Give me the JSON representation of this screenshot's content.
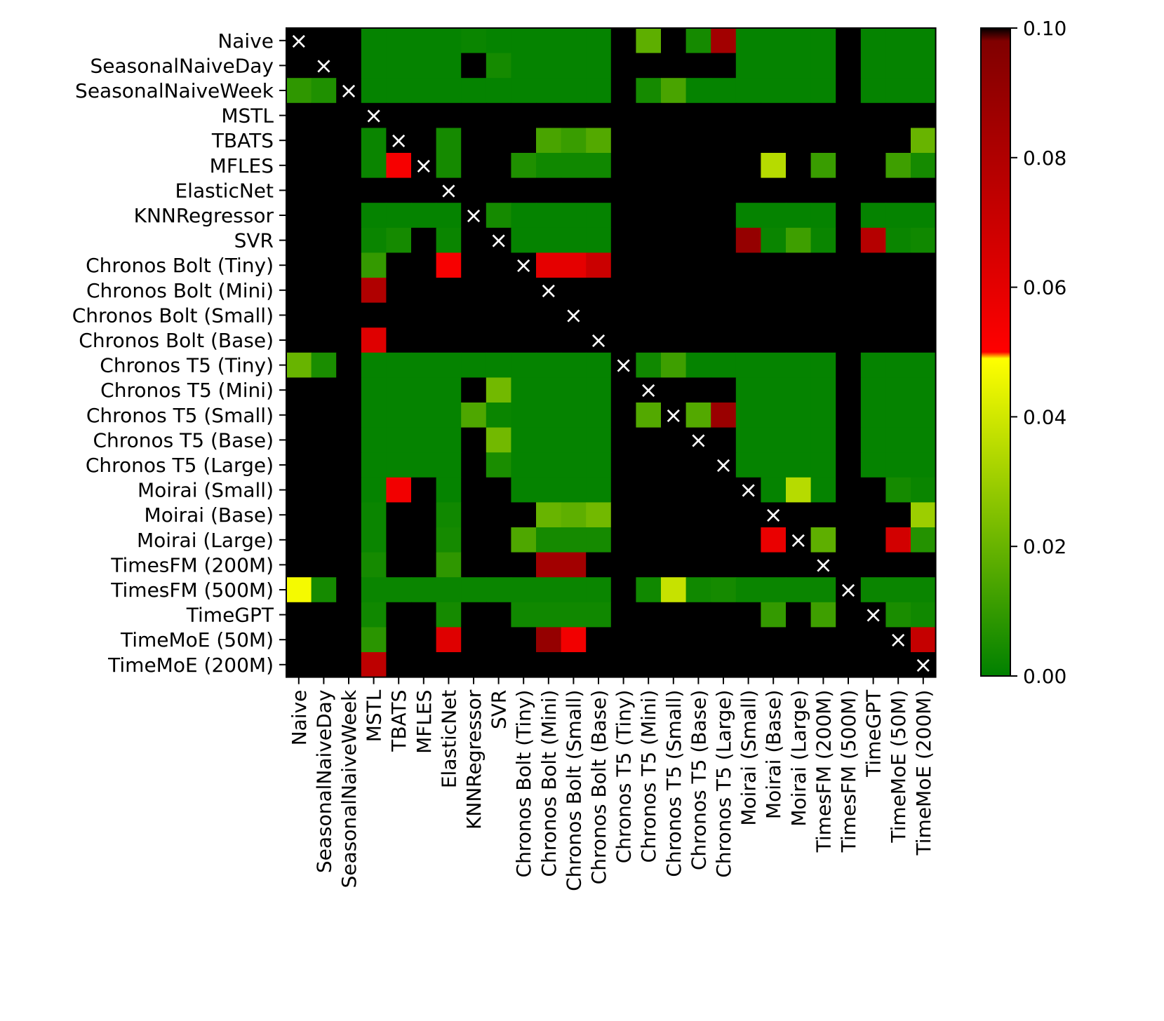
{
  "chart_data": {
    "type": "heatmap",
    "title": "",
    "xlabel": "",
    "ylabel": "",
    "labels": [
      "Naive",
      "SeasonalNaiveDay",
      "SeasonalNaiveWeek",
      "MSTL",
      "TBATS",
      "MFLES",
      "ElasticNet",
      "KNNRegressor",
      "SVR",
      "Chronos Bolt (Tiny)",
      "Chronos Bolt (Mini)",
      "Chronos Bolt (Small)",
      "Chronos Bolt (Base)",
      "Chronos T5 (Tiny)",
      "Chronos T5 (Mini)",
      "Chronos T5 (Small)",
      "Chronos T5 (Base)",
      "Chronos T5 (Large)",
      "Moirai (Small)",
      "Moirai (Base)",
      "Moirai (Large)",
      "TimesFM (200M)",
      "TimesFM (500M)",
      "TimeGPT",
      "TimeMoE (50M)",
      "TimeMoE (200M)"
    ],
    "diagonal_marker": "×",
    "zlim": [
      0.0,
      0.1
    ],
    "colorbar": {
      "ticks": [
        0.0,
        0.02,
        0.04,
        0.06,
        0.08,
        0.1
      ],
      "tick_labels": [
        "0.00",
        "0.02",
        "0.04",
        "0.06",
        "0.08",
        "0.10"
      ],
      "stops": [
        {
          "value": 0.0,
          "color": "#008000"
        },
        {
          "value": 0.049,
          "color": "#ffff00"
        },
        {
          "value": 0.05,
          "color": "#ff0000"
        },
        {
          "value": 0.098,
          "color": "#800000"
        },
        {
          "value": 0.1,
          "color": "#000000"
        }
      ],
      "above_max_color": "#000000"
    },
    "note": "null = diagonal; 1 = p-value above 0.10 (black)",
    "values": [
      [
        null,
        1,
        1,
        0.001,
        0.001,
        0.001,
        0.001,
        0.002,
        0.001,
        0.001,
        0.001,
        0.001,
        0.001,
        1,
        0.018,
        1,
        0.004,
        0.085,
        0.001,
        0.001,
        0.001,
        0.001,
        1,
        0.001,
        0.001,
        0.001
      ],
      [
        1,
        null,
        1,
        0.001,
        0.001,
        0.001,
        0.001,
        1,
        0.004,
        0.001,
        0.001,
        0.001,
        0.001,
        1,
        1,
        1,
        1,
        1,
        0.001,
        0.001,
        0.001,
        0.001,
        1,
        0.001,
        0.001,
        0.001
      ],
      [
        0.009,
        0.006,
        null,
        0.001,
        0.001,
        0.001,
        0.001,
        0.001,
        0.001,
        0.001,
        0.001,
        0.001,
        0.001,
        1,
        0.004,
        0.014,
        0.001,
        0.001,
        0.001,
        0.001,
        0.001,
        0.001,
        1,
        0.001,
        0.001,
        0.001
      ],
      [
        1,
        1,
        1,
        null,
        1,
        1,
        1,
        1,
        1,
        1,
        1,
        1,
        1,
        1,
        1,
        1,
        1,
        1,
        1,
        1,
        1,
        1,
        1,
        1,
        1,
        1
      ],
      [
        1,
        1,
        1,
        0.002,
        null,
        1,
        0.004,
        1,
        1,
        1,
        0.014,
        0.011,
        0.016,
        1,
        1,
        1,
        1,
        1,
        1,
        1,
        1,
        1,
        1,
        1,
        1,
        0.02
      ],
      [
        1,
        1,
        1,
        0.002,
        0.053,
        null,
        0.004,
        1,
        1,
        0.006,
        0.003,
        0.003,
        0.003,
        1,
        1,
        1,
        1,
        1,
        1,
        0.035,
        1,
        0.011,
        1,
        1,
        0.012,
        0.004
      ],
      [
        1,
        1,
        1,
        1,
        1,
        1,
        null,
        1,
        1,
        1,
        1,
        1,
        1,
        1,
        1,
        1,
        1,
        1,
        1,
        1,
        1,
        1,
        1,
        1,
        1,
        1
      ],
      [
        1,
        1,
        1,
        0.001,
        0.001,
        0.001,
        0.001,
        null,
        0.004,
        0.001,
        0.001,
        0.001,
        0.001,
        1,
        1,
        1,
        1,
        1,
        0.001,
        0.001,
        0.001,
        0.001,
        1,
        0.001,
        0.001,
        0.001
      ],
      [
        1,
        1,
        1,
        0.002,
        0.004,
        1,
        0.002,
        1,
        null,
        0.001,
        0.001,
        0.001,
        0.001,
        1,
        1,
        1,
        1,
        1,
        0.09,
        0.002,
        0.012,
        0.002,
        1,
        0.078,
        0.002,
        0.003
      ],
      [
        1,
        1,
        1,
        0.01,
        1,
        1,
        0.053,
        1,
        1,
        null,
        0.06,
        0.06,
        0.07,
        1,
        1,
        1,
        1,
        1,
        1,
        1,
        1,
        1,
        1,
        1,
        1,
        1
      ],
      [
        1,
        1,
        1,
        0.08,
        1,
        1,
        1,
        1,
        1,
        1,
        null,
        1,
        1,
        1,
        1,
        1,
        1,
        1,
        1,
        1,
        1,
        1,
        1,
        1,
        1,
        1
      ],
      [
        1,
        1,
        1,
        1,
        1,
        1,
        1,
        1,
        1,
        1,
        1,
        null,
        1,
        1,
        1,
        1,
        1,
        1,
        1,
        1,
        1,
        1,
        1,
        1,
        1,
        1
      ],
      [
        1,
        1,
        1,
        0.062,
        1,
        1,
        1,
        1,
        1,
        1,
        1,
        1,
        null,
        1,
        1,
        1,
        1,
        1,
        1,
        1,
        1,
        1,
        1,
        1,
        1,
        1
      ],
      [
        0.02,
        0.005,
        1,
        0.001,
        0.001,
        0.001,
        0.001,
        0.001,
        0.001,
        0.001,
        0.001,
        0.001,
        0.001,
        null,
        0.003,
        0.012,
        0.001,
        0.001,
        0.001,
        0.001,
        0.001,
        0.001,
        1,
        0.001,
        0.001,
        0.001
      ],
      [
        1,
        1,
        1,
        0.001,
        0.001,
        0.001,
        0.001,
        1,
        0.022,
        0.001,
        0.001,
        0.001,
        0.001,
        1,
        null,
        1,
        1,
        1,
        0.001,
        0.001,
        0.001,
        0.001,
        1,
        0.001,
        0.001,
        0.001
      ],
      [
        1,
        1,
        1,
        0.001,
        0.001,
        0.001,
        0.001,
        0.015,
        0.002,
        0.001,
        0.001,
        0.001,
        0.001,
        1,
        0.016,
        null,
        0.016,
        0.088,
        0.001,
        0.001,
        0.001,
        0.001,
        1,
        0.001,
        0.001,
        0.001
      ],
      [
        1,
        1,
        1,
        0.001,
        0.001,
        0.001,
        0.001,
        1,
        0.022,
        0.001,
        0.001,
        0.001,
        0.001,
        1,
        1,
        1,
        null,
        1,
        0.001,
        0.001,
        0.001,
        0.001,
        1,
        0.001,
        0.001,
        0.001
      ],
      [
        1,
        1,
        1,
        0.001,
        0.001,
        0.001,
        0.001,
        1,
        0.005,
        0.001,
        0.001,
        0.001,
        0.001,
        1,
        1,
        1,
        1,
        null,
        0.001,
        0.001,
        0.001,
        0.001,
        1,
        0.001,
        0.001,
        0.001
      ],
      [
        1,
        1,
        1,
        0.001,
        0.055,
        1,
        0.001,
        1,
        1,
        0.001,
        0.001,
        0.001,
        0.001,
        1,
        1,
        1,
        1,
        1,
        null,
        0.001,
        0.035,
        0.001,
        1,
        1,
        0.004,
        0.002
      ],
      [
        1,
        1,
        1,
        0.002,
        1,
        1,
        0.003,
        1,
        1,
        1,
        0.02,
        0.018,
        0.022,
        1,
        1,
        1,
        1,
        1,
        1,
        null,
        1,
        1,
        1,
        1,
        1,
        0.03
      ],
      [
        1,
        1,
        1,
        0.002,
        1,
        1,
        0.004,
        1,
        1,
        0.015,
        0.004,
        0.004,
        0.004,
        1,
        1,
        1,
        1,
        1,
        1,
        0.058,
        null,
        0.018,
        1,
        1,
        0.067,
        0.007
      ],
      [
        1,
        1,
        1,
        0.004,
        1,
        1,
        0.009,
        1,
        1,
        1,
        0.085,
        0.085,
        1,
        1,
        1,
        1,
        1,
        1,
        1,
        1,
        1,
        null,
        1,
        1,
        1,
        1
      ],
      [
        0.047,
        0.004,
        1,
        0.002,
        0.002,
        0.002,
        0.002,
        0.002,
        0.002,
        0.002,
        0.002,
        0.002,
        0.002,
        1,
        0.003,
        0.038,
        0.003,
        0.004,
        0.002,
        0.002,
        0.002,
        0.002,
        null,
        0.002,
        0.002,
        0.002
      ],
      [
        1,
        1,
        1,
        0.003,
        1,
        1,
        0.004,
        1,
        1,
        0.003,
        0.003,
        0.003,
        0.003,
        1,
        1,
        1,
        1,
        1,
        1,
        0.01,
        1,
        0.012,
        1,
        null,
        0.005,
        0.003
      ],
      [
        1,
        1,
        1,
        0.008,
        1,
        1,
        0.062,
        1,
        1,
        1,
        0.09,
        0.055,
        1,
        1,
        1,
        1,
        1,
        1,
        1,
        1,
        1,
        1,
        1,
        1,
        null,
        0.072
      ],
      [
        1,
        1,
        1,
        0.075,
        1,
        1,
        1,
        1,
        1,
        1,
        1,
        1,
        1,
        1,
        1,
        1,
        1,
        1,
        1,
        1,
        1,
        1,
        1,
        1,
        1,
        null
      ]
    ]
  }
}
